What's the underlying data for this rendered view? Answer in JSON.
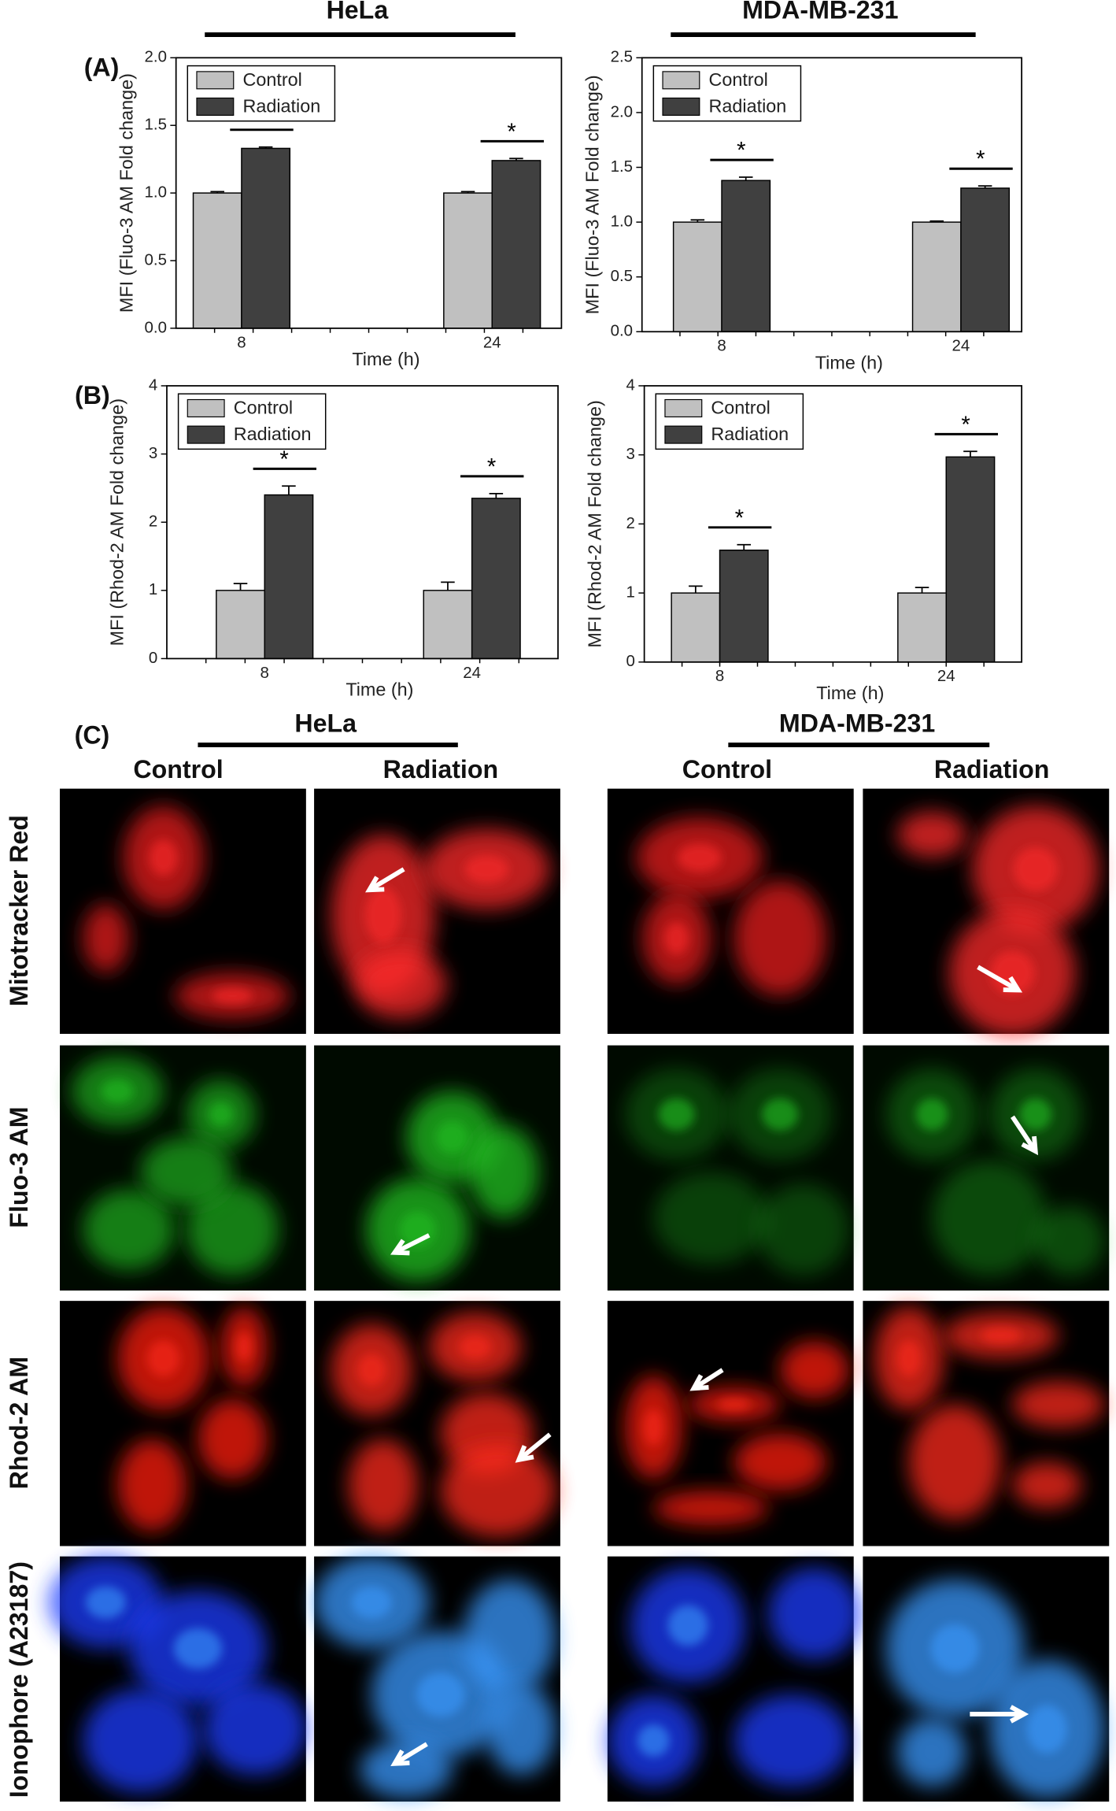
{
  "chart_data": [
    {
      "type": "bar",
      "label": "(A)",
      "title": "HeLa",
      "categories": [
        "8",
        "24"
      ],
      "series": [
        {
          "name": "Control",
          "color": "#c0c0c0",
          "values": [
            1,
            1
          ],
          "errors": [
            0.01,
            0.01
          ]
        },
        {
          "name": "Radiation",
          "color": "#404040",
          "values": [
            1.33,
            1.24
          ],
          "errors": [
            0.01,
            0.015
          ]
        }
      ],
      "xlabel": "Time (h)",
      "ylabel": "MFI (Fluo-3 AM Fold change)",
      "ylim": [
        0,
        2
      ],
      "yticks": [
        {
          "value": 0,
          "label": "0.0"
        },
        0.5,
        {
          "value": 1,
          "label": "1.0"
        },
        1.5,
        {
          "value": 2,
          "label": "2.0"
        }
      ],
      "annotations": [
        "*",
        "*"
      ],
      "legend": "upper left"
    },
    {
      "type": "bar",
      "title": "MDA-MB-231",
      "categories": [
        "8",
        "24"
      ],
      "series": [
        {
          "name": "Control",
          "color": "#c0c0c0",
          "values": [
            1,
            1
          ],
          "errors": [
            0.02,
            0.01
          ]
        },
        {
          "name": "Radiation",
          "color": "#404040",
          "values": [
            1.38,
            1.31
          ],
          "errors": [
            0.03,
            0.02
          ]
        }
      ],
      "xlabel": "Time (h)",
      "ylabel": "MFI (Fluo-3 AM Fold change)",
      "ylim": [
        0,
        2.5
      ],
      "yticks": [
        {
          "value": 0,
          "label": "0.0"
        },
        0.5,
        {
          "value": 1,
          "label": "1.0"
        },
        1.5,
        {
          "value": 2,
          "label": "2.0"
        },
        2.5
      ],
      "annotations": [
        "*",
        "*"
      ],
      "legend": "upper left"
    },
    {
      "type": "bar",
      "label": "(B)",
      "categories": [
        "8",
        "24"
      ],
      "series": [
        {
          "name": "Control",
          "color": "#c0c0c0",
          "values": [
            1,
            1
          ],
          "errors": [
            0.1,
            0.12
          ]
        },
        {
          "name": "Radiation",
          "color": "#404040",
          "values": [
            2.4,
            2.35
          ],
          "errors": [
            0.13,
            0.07
          ]
        }
      ],
      "xlabel": "Time (h)",
      "ylabel": "MFI (Rhod-2 AM Fold change)",
      "ylim": [
        0,
        4
      ],
      "yticks": [
        0,
        1,
        2,
        3,
        4
      ],
      "annotations": [
        "*",
        "*"
      ],
      "legend": "upper left"
    },
    {
      "type": "bar",
      "categories": [
        "8",
        "24"
      ],
      "series": [
        {
          "name": "Control",
          "color": "#c0c0c0",
          "values": [
            1,
            1
          ],
          "errors": [
            0.1,
            0.08
          ]
        },
        {
          "name": "Radiation",
          "color": "#404040",
          "values": [
            1.62,
            2.97
          ],
          "errors": [
            0.08,
            0.08
          ]
        }
      ],
      "xlabel": "Time (h)",
      "ylabel": "MFI (Rhod-2 AM Fold change)",
      "ylim": [
        0,
        4
      ],
      "yticks": [
        0,
        1,
        2,
        3,
        4
      ],
      "annotations": [
        "*",
        "*"
      ],
      "legend": "upper left"
    }
  ],
  "panel_c": {
    "label": "(C)",
    "groups": [
      "HeLa",
      "MDA-MB-231"
    ],
    "columns": [
      "Control",
      "Radiation",
      "Control",
      "Radiation"
    ],
    "rows": [
      "Mitotracker Red",
      "Fluo-3 AM",
      "Rhod-2 AM",
      "Ionophore (A23187)"
    ]
  }
}
